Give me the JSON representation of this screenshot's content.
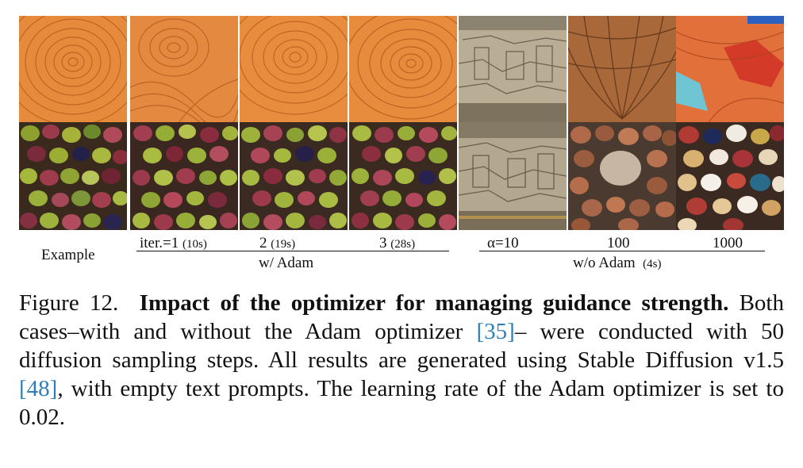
{
  "columns": {
    "example": "Example",
    "iter1": "iter.=1",
    "iter1_time": "(10s)",
    "iter2": "2",
    "iter2_time": "(19s)",
    "iter3": "3",
    "iter3_time": "(28s)",
    "alpha10": "α=10",
    "alpha100": "100",
    "alpha1000": "1000"
  },
  "groups": {
    "with_adam": "w/ Adam",
    "without_adam": "w/o Adam",
    "without_adam_time": "(4s)"
  },
  "tiles": [
    {
      "row": "wood",
      "col": "example"
    },
    {
      "row": "wood",
      "col": "iter1"
    },
    {
      "row": "wood",
      "col": "iter2"
    },
    {
      "row": "wood",
      "col": "iter3"
    },
    {
      "row": "wood",
      "col": "alpha10"
    },
    {
      "row": "wood",
      "col": "alpha100"
    },
    {
      "row": "wood",
      "col": "alpha1000"
    },
    {
      "row": "olives",
      "col": "example"
    },
    {
      "row": "olives",
      "col": "iter1"
    },
    {
      "row": "olives",
      "col": "iter2"
    },
    {
      "row": "olives",
      "col": "iter3"
    },
    {
      "row": "olives",
      "col": "alpha10"
    },
    {
      "row": "olives",
      "col": "alpha100"
    },
    {
      "row": "olives",
      "col": "alpha1000"
    }
  ],
  "caption": {
    "figure_label": "Figure 12.",
    "title": "Impact of the optimizer for managing guidance strength.",
    "text_1": "Both cases–with and without the Adam optimizer",
    "ref_1": "[35]",
    "text_2": "– were conducted with 50 diffusion sampling steps. All results are generated using Stable Diffusion v1.5",
    "ref_2": "[48]",
    "text_3": ", with empty text prompts. The learning rate of the Adam optimizer is set to 0.02."
  }
}
